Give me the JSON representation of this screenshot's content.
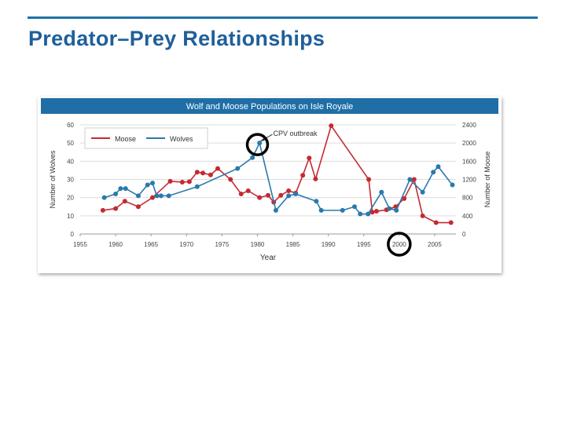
{
  "slide": {
    "title": "Predator–Prey Relationships"
  },
  "chart_data": {
    "type": "line",
    "title": "Wolf and  Moose Populations on Isle Royale",
    "xlabel": "Year",
    "ylabel_left": "Number of Wolves",
    "ylabel_right": "Number of Moose",
    "x_ticks": [
      "1955",
      "1960",
      "1965",
      "1970",
      "1975",
      "1980",
      "1985",
      "1990",
      "1995",
      "2000",
      "2005"
    ],
    "y_left_ticks": [
      "0",
      "10",
      "20",
      "30",
      "40",
      "50",
      "60"
    ],
    "y_right_ticks": [
      "0",
      "400",
      "800",
      "1200",
      "1600",
      "2000",
      "2400"
    ],
    "xlim": [
      1955,
      2008
    ],
    "ylim_left": [
      0,
      60
    ],
    "ylim_right": [
      0,
      2400
    ],
    "legend_position": "top-left",
    "grid": "horizontal",
    "series": [
      {
        "name": "Moose",
        "axis": "right",
        "color": "#c42a32",
        "x": [
          1959,
          1961,
          1962,
          1964,
          1966,
          1967,
          1968,
          1969,
          1970,
          1971,
          1972,
          1973,
          1974,
          1977,
          1978,
          1980,
          1981,
          1982,
          1983,
          1984,
          1985,
          1986,
          1987,
          1988,
          1990,
          1995,
          1996,
          1997,
          1998,
          1999,
          2001,
          2002,
          2003,
          2004,
          2006
        ],
        "y": [
          500,
          550,
          720,
          600,
          800,
          1150,
          1180,
          1150,
          1150,
          1300,
          1280,
          1300,
          1420,
          880,
          950,
          800,
          850,
          700,
          900,
          950,
          950,
          1280,
          1650,
          1210,
          2400,
          1200,
          480,
          500,
          550,
          800,
          900,
          1200,
          400,
          250,
          250
        ],
        "x_plot": [
          1958.2,
          1960,
          1961.3,
          1963.2,
          1965.2,
          1967.7,
          1969.4,
          1970.4,
          1971.5,
          1972.3,
          1973.4,
          1974.4,
          1976.2,
          1977.7,
          1978.7,
          1980.3,
          1981.5,
          1982.3,
          1983.3,
          1984.4,
          1985.4,
          1986.4,
          1987.3,
          1988.2,
          1990.4,
          1995.7,
          1996.2,
          1996.8,
          1998.2,
          1999.5,
          2000.7,
          2002.1,
          2003.3,
          2005.2,
          2007.3
        ],
        "y_plot": [
          520,
          560,
          720,
          600,
          800,
          1160,
          1140,
          1150,
          1360,
          1340,
          1300,
          1440,
          1200,
          880,
          950,
          800,
          850,
          700,
          850,
          950,
          900,
          1290,
          1670,
          1210,
          2380,
          1200,
          480,
          500,
          530,
          600,
          780,
          1200,
          400,
          250,
          250
        ]
      },
      {
        "name": "Wolves",
        "axis": "left",
        "color": "#2a79ad",
        "x": [
          1959,
          1960,
          1961,
          1962,
          1963,
          1964,
          1965,
          1966,
          1967,
          1968,
          1969,
          1970,
          1971,
          1972,
          1973,
          1974,
          1975,
          1976,
          1977,
          1978,
          1979,
          1980,
          1981,
          1982,
          1983,
          1984,
          1985,
          1986,
          1987,
          1988,
          1989,
          1990,
          1991,
          1992,
          1993,
          1994,
          1995,
          1996,
          1997,
          1998,
          1999,
          2000,
          2001,
          2002,
          2003,
          2004,
          2005,
          2006,
          2007
        ],
        "y": [
          20,
          22,
          23,
          25,
          22,
          20,
          26,
          28,
          26,
          22,
          17,
          18,
          20,
          23,
          24,
          31,
          41,
          44,
          34,
          40,
          43,
          50,
          30,
          14,
          23,
          24,
          22,
          20,
          16,
          12,
          11,
          15,
          12,
          12,
          13,
          15,
          16,
          22,
          24,
          14,
          25,
          29,
          19,
          17,
          19,
          29,
          30,
          30,
          21
        ],
        "x_plot": [
          1958.4,
          1960,
          1960.7,
          1961.4,
          1963.2,
          1964.5,
          1965.2,
          1965.8,
          1966.4,
          1967.5,
          1971.5,
          1977.2,
          1979.3,
          1980.3,
          1982.6,
          1984.4,
          1985.4,
          1988.3,
          1989,
          1992,
          1993.7,
          1994.5,
          1995.6,
          1997.5,
          1998.6,
          1999.6,
          2001.5,
          2003.3,
          2004.8,
          2005.5,
          2007.5
        ],
        "y_plot": [
          20,
          22,
          25,
          25,
          21,
          27,
          28,
          21,
          21,
          21,
          26,
          36,
          42,
          50,
          13,
          21,
          22,
          18,
          13,
          13,
          15,
          11,
          11,
          23,
          14,
          13,
          30,
          23,
          34,
          37,
          27
        ]
      }
    ],
    "annotations": [
      {
        "text": "CPV outbreak",
        "x": 1980,
        "y": 50
      }
    ],
    "highlights": [
      {
        "shape": "circle",
        "target": "1980 wolf peak"
      },
      {
        "shape": "circle",
        "target": "x tick 2000"
      }
    ]
  }
}
